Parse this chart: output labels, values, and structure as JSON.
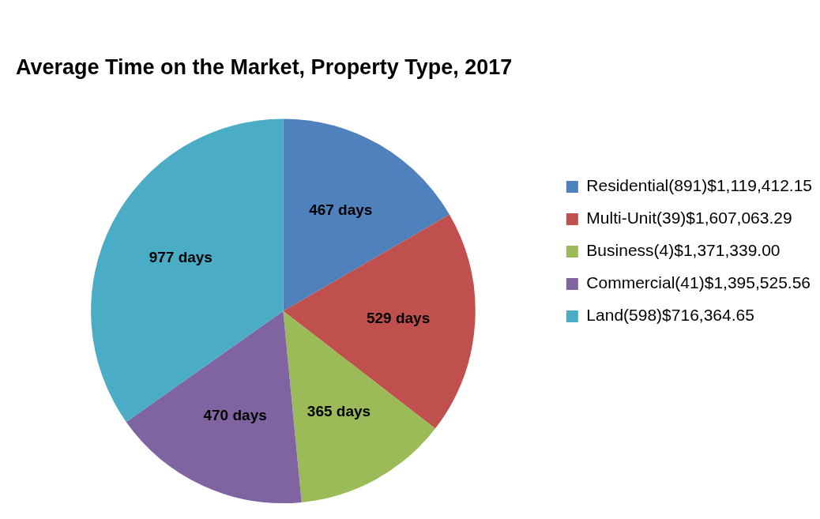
{
  "chart_data": {
    "type": "pie",
    "title": "Average Time on the Market, Property Type, 2017",
    "categories": [
      "Residential(891)$1,119,412.15",
      "Multi-Unit(39)$1,607,063.29",
      "Business(4)$1,371,339.00",
      "Commercial(41)$1,395,525.56",
      "Land(598)$716,364.65"
    ],
    "values": [
      467,
      529,
      365,
      470,
      977
    ],
    "colors": [
      "#4f81bd",
      "#c0504d",
      "#9bbb59",
      "#8064a2",
      "#4bacc6"
    ],
    "value_labels": [
      "467 days",
      "529 days",
      "365 days",
      "470 days",
      "977 days"
    ],
    "legend": "right"
  }
}
